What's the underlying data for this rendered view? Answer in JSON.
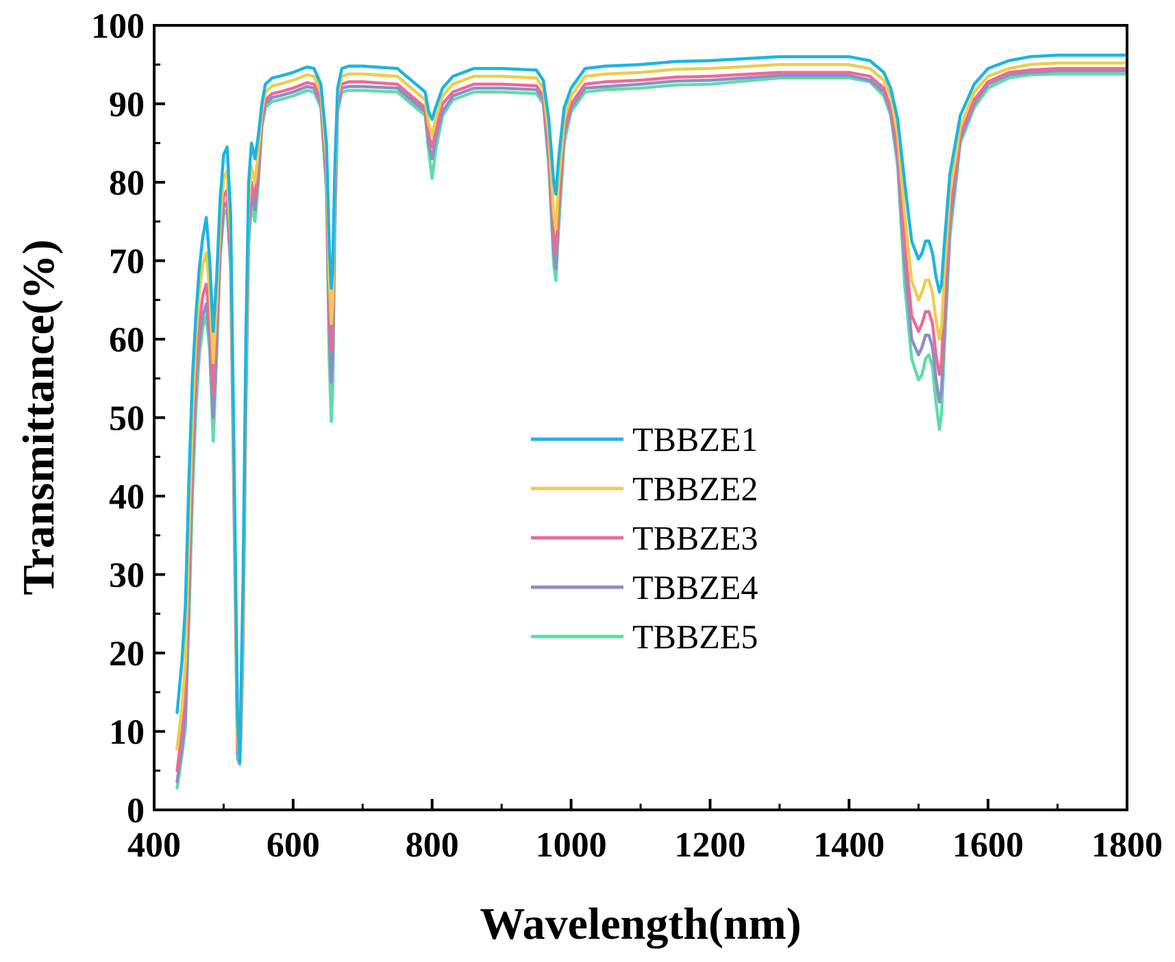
{
  "chart_data": {
    "type": "line",
    "title": "",
    "xlabel": "Wavelength(nm)",
    "ylabel": "Transmittance(%)",
    "xlim": [
      400,
      1800
    ],
    "ylim": [
      0,
      100
    ],
    "xticks": [
      400,
      600,
      800,
      1000,
      1200,
      1400,
      1600,
      1800
    ],
    "yticks": [
      0,
      10,
      20,
      30,
      40,
      50,
      60,
      70,
      80,
      90,
      100
    ],
    "grid": false,
    "legend_position": "center",
    "x": [
      433,
      440,
      445,
      450,
      455,
      460,
      465,
      470,
      475,
      480,
      485,
      490,
      495,
      500,
      505,
      510,
      515,
      520,
      523,
      525,
      528,
      532,
      536,
      540,
      545,
      550,
      555,
      560,
      570,
      580,
      600,
      620,
      630,
      640,
      648,
      652,
      655,
      657,
      660,
      664,
      670,
      680,
      700,
      750,
      790,
      795,
      800,
      805,
      815,
      830,
      860,
      900,
      950,
      960,
      968,
      975,
      978,
      982,
      990,
      1000,
      1020,
      1050,
      1100,
      1150,
      1200,
      1300,
      1400,
      1430,
      1450,
      1460,
      1470,
      1480,
      1490,
      1500,
      1505,
      1510,
      1515,
      1520,
      1525,
      1530,
      1533,
      1537,
      1545,
      1560,
      1580,
      1600,
      1630,
      1660,
      1700,
      1750,
      1800
    ],
    "series": [
      {
        "name": "TBBZE1",
        "color": "#1db5e0",
        "values": [
          12.4,
          19.0,
          26.0,
          42.0,
          55.0,
          63.0,
          69.0,
          73.0,
          75.5,
          70.0,
          61.0,
          68.0,
          78.0,
          83.5,
          84.5,
          76.0,
          45.0,
          12.0,
          6.0,
          15.0,
          29.5,
          60.0,
          80.0,
          85.0,
          83.0,
          86.0,
          90.0,
          92.5,
          93.3,
          93.5,
          94.0,
          94.7,
          94.5,
          92.5,
          85.0,
          72.0,
          66.5,
          69.0,
          82.0,
          92.0,
          94.5,
          94.8,
          94.8,
          94.5,
          91.5,
          89.0,
          88.0,
          89.5,
          92.0,
          93.5,
          94.5,
          94.5,
          94.3,
          93.0,
          88.0,
          80.0,
          78.5,
          83.0,
          89.5,
          92.0,
          94.5,
          94.8,
          95.0,
          95.4,
          95.5,
          96.0,
          96.0,
          95.5,
          94.0,
          92.0,
          88.0,
          80.0,
          72.5,
          70.2,
          71.0,
          72.5,
          72.5,
          71.0,
          68.0,
          66.0,
          67.0,
          72.0,
          81.0,
          88.5,
          92.5,
          94.5,
          95.5,
          96.0,
          96.2,
          96.2,
          96.2
        ]
      },
      {
        "name": "TBBZE2",
        "color": "#ecce4e",
        "values": [
          7.8,
          13.0,
          19.0,
          35.0,
          50.0,
          60.0,
          66.0,
          69.5,
          71.0,
          66.0,
          57.0,
          65.0,
          75.0,
          80.5,
          81.5,
          73.0,
          42.0,
          9.0,
          6.0,
          12.0,
          25.0,
          56.0,
          77.0,
          82.0,
          80.0,
          84.0,
          89.0,
          91.5,
          92.3,
          92.5,
          93.0,
          93.7,
          93.5,
          91.5,
          83.0,
          68.0,
          62.0,
          65.0,
          80.0,
          91.0,
          93.5,
          93.8,
          93.8,
          93.5,
          90.5,
          87.5,
          86.0,
          88.0,
          91.0,
          92.5,
          93.5,
          93.5,
          93.3,
          92.0,
          86.0,
          76.0,
          74.0,
          80.0,
          88.0,
          91.0,
          93.5,
          93.8,
          94.0,
          94.4,
          94.5,
          95.0,
          95.0,
          94.5,
          93.0,
          91.0,
          86.0,
          76.0,
          67.5,
          65.0,
          66.0,
          67.5,
          67.5,
          66.0,
          62.5,
          60.0,
          61.5,
          68.0,
          78.5,
          87.0,
          91.5,
          93.5,
          94.5,
          95.0,
          95.2,
          95.2,
          95.2
        ]
      },
      {
        "name": "TBBZE3",
        "color": "#ec6b95",
        "values": [
          5.0,
          10.0,
          15.0,
          30.0,
          46.0,
          56.0,
          62.0,
          65.5,
          67.0,
          62.5,
          53.0,
          62.0,
          73.0,
          78.2,
          79.0,
          71.0,
          40.0,
          8.0,
          6.0,
          11.0,
          23.0,
          54.0,
          75.0,
          80.0,
          78.0,
          82.0,
          88.0,
          90.5,
          91.3,
          91.5,
          92.0,
          92.7,
          92.5,
          90.5,
          81.0,
          64.0,
          58.5,
          62.0,
          78.0,
          90.0,
          92.5,
          92.8,
          92.8,
          92.5,
          89.5,
          86.0,
          84.5,
          86.5,
          90.0,
          91.5,
          92.5,
          92.5,
          92.3,
          91.0,
          84.0,
          73.0,
          71.0,
          77.0,
          86.5,
          90.0,
          92.5,
          92.8,
          93.0,
          93.4,
          93.5,
          94.0,
          94.0,
          93.5,
          92.0,
          89.5,
          84.0,
          72.0,
          63.0,
          61.0,
          62.0,
          63.5,
          63.5,
          62.0,
          58.0,
          55.5,
          57.0,
          64.0,
          76.0,
          86.0,
          90.5,
          92.8,
          94.0,
          94.3,
          94.5,
          94.5,
          94.5
        ]
      },
      {
        "name": "TBBZE4",
        "color": "#8c8fc7",
        "values": [
          3.6,
          8.0,
          12.0,
          27.0,
          43.0,
          54.0,
          60.0,
          63.0,
          64.5,
          60.0,
          50.0,
          60.0,
          71.5,
          76.8,
          77.5,
          70.0,
          39.0,
          7.0,
          6.0,
          10.5,
          22.0,
          52.0,
          73.5,
          78.5,
          76.5,
          81.0,
          87.5,
          90.0,
          90.8,
          91.0,
          91.5,
          92.2,
          92.0,
          90.0,
          80.0,
          61.0,
          54.5,
          58.0,
          76.0,
          89.5,
          92.0,
          92.2,
          92.2,
          92.0,
          89.0,
          85.0,
          83.0,
          85.5,
          89.0,
          91.0,
          92.0,
          92.0,
          91.8,
          90.5,
          83.0,
          71.0,
          69.0,
          76.0,
          86.0,
          89.5,
          92.0,
          92.2,
          92.5,
          92.9,
          93.0,
          93.6,
          93.6,
          93.0,
          91.5,
          89.0,
          83.0,
          70.0,
          60.0,
          58.0,
          59.0,
          60.5,
          60.5,
          59.0,
          55.0,
          52.0,
          53.5,
          61.0,
          74.5,
          85.5,
          90.0,
          92.5,
          93.7,
          94.0,
          94.2,
          94.2,
          94.2
        ]
      },
      {
        "name": "TBBZE5",
        "color": "#5fdca9",
        "values": [
          2.8,
          7.0,
          10.5,
          24.0,
          40.0,
          51.0,
          58.0,
          61.5,
          63.0,
          58.5,
          47.0,
          58.0,
          70.5,
          75.8,
          76.5,
          69.0,
          38.0,
          6.5,
          5.8,
          9.5,
          21.0,
          51.0,
          72.0,
          77.0,
          75.0,
          80.0,
          87.0,
          89.5,
          90.3,
          90.5,
          91.0,
          91.7,
          91.5,
          89.5,
          79.0,
          57.0,
          49.5,
          54.0,
          74.0,
          89.0,
          91.5,
          91.7,
          91.7,
          91.5,
          88.5,
          84.0,
          80.5,
          84.0,
          88.5,
          90.5,
          91.5,
          91.5,
          91.3,
          90.0,
          82.0,
          69.5,
          67.5,
          74.0,
          85.0,
          89.0,
          91.5,
          91.8,
          92.0,
          92.4,
          92.5,
          93.3,
          93.3,
          92.8,
          91.0,
          88.5,
          82.0,
          67.0,
          57.5,
          54.8,
          55.5,
          57.5,
          58.0,
          56.5,
          52.0,
          48.5,
          50.5,
          58.5,
          73.0,
          85.0,
          89.5,
          92.0,
          93.3,
          93.7,
          93.8,
          93.8,
          93.8
        ]
      }
    ]
  }
}
